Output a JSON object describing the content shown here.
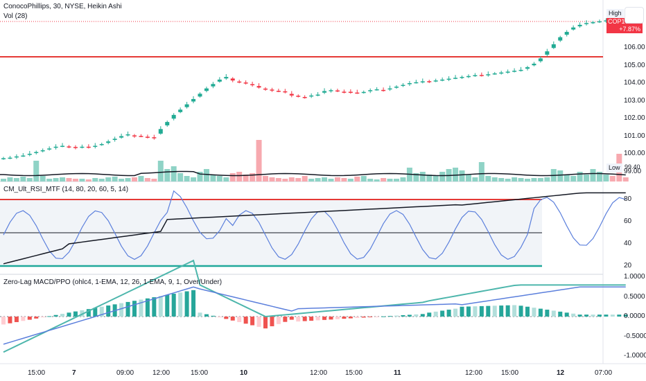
{
  "title": "ConocoPhillips, 30, NYSE, Heikin Ashi",
  "vol_label": "Vol (28)",
  "symbol": "COP",
  "last_price": "107.41",
  "change_pct": "+7.87%",
  "high_label": "High",
  "low_label": "Low",
  "low_value": "99.40",
  "price_ticks": [
    "106.00",
    "105.00",
    "104.00",
    "103.00",
    "102.00",
    "101.00",
    "100.00",
    "99.00"
  ],
  "rsi_label": "CM_Ult_RSI_MTF (14, 80, 20, 60, 5, 14)",
  "rsi_ticks": [
    "80",
    "60",
    "40",
    "20"
  ],
  "macd_label": "Zero-Lag MACD/PPO (ohlc4, 1-EMA, 12, 26, 1-EMA, 9, 1, Over/Under)",
  "macd_ticks": [
    "1.0000",
    "0.5000",
    "0.0000",
    "-0.5000",
    "-1.0000"
  ],
  "time_labels": [
    "15:00",
    "7",
    "09:00",
    "12:00",
    "15:00",
    "10",
    "12:00",
    "15:00",
    "11",
    "12:00",
    "15:00",
    "12",
    "07:00"
  ],
  "colors": {
    "up": "#22ab94",
    "down": "#f23645",
    "rsi_line": "#5b7fdc",
    "level_red": "#e53935",
    "level_green": "#1fa89a"
  },
  "chart_data": {
    "type": "candlestick",
    "style": "Heikin Ashi",
    "interval": "30",
    "candles_close": [
      99.75,
      99.78,
      99.85,
      99.9,
      100.0,
      100.1,
      100.2,
      100.3,
      100.4,
      100.45,
      100.4,
      100.35,
      100.4,
      100.38,
      100.45,
      100.55,
      100.7,
      100.85,
      101.0,
      101.1,
      101.0,
      101.0,
      100.95,
      100.9,
      101.4,
      101.8,
      102.2,
      102.5,
      102.8,
      103.1,
      103.4,
      103.7,
      103.95,
      104.2,
      104.35,
      104.15,
      104.05,
      104.0,
      103.9,
      103.75,
      103.65,
      103.6,
      103.55,
      103.5,
      103.3,
      103.25,
      103.2,
      103.3,
      103.35,
      103.55,
      103.6,
      103.55,
      103.5,
      103.5,
      103.45,
      103.5,
      103.6,
      103.65,
      103.6,
      103.7,
      103.8,
      103.9,
      104.0,
      104.05,
      104.1,
      104.1,
      104.15,
      104.2,
      104.25,
      104.3,
      104.35,
      104.4,
      104.45,
      104.45,
      104.5,
      104.55,
      104.6,
      104.65,
      104.7,
      104.75,
      104.9,
      105.1,
      105.4,
      105.8,
      106.2,
      106.6,
      106.9,
      107.15,
      107.3,
      107.4,
      107.45,
      107.5,
      107.55,
      107.5,
      107.45,
      107.41
    ],
    "volume_ma_level": "low",
    "rsi": {
      "overbought": 80,
      "oversold": 20,
      "mid": 50
    },
    "macd": {
      "range": [
        -1.0,
        1.0
      ]
    }
  }
}
